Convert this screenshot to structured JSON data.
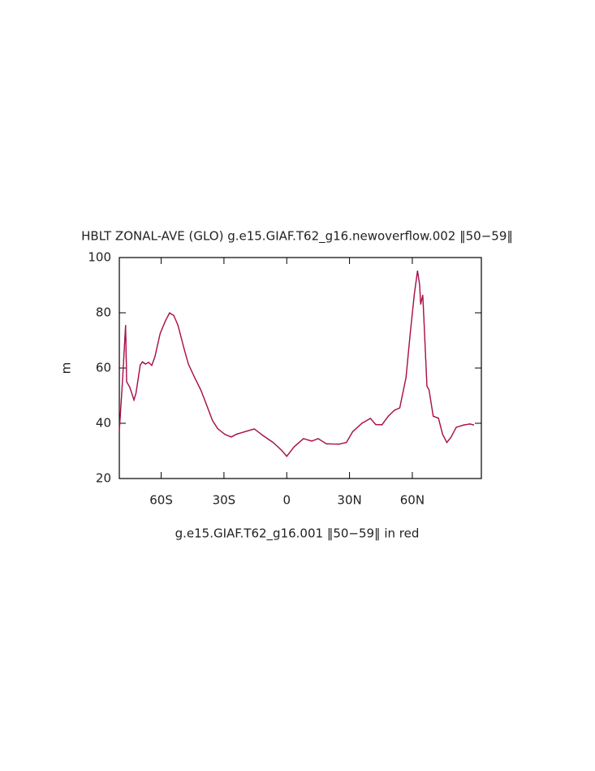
{
  "chart_data": {
    "type": "line",
    "title": "HBLT ZONAL-AVE (GLO) g.e15.GIAF.T62_g16.newoverflow.002 ‖50−59‖",
    "subtitle": "g.e15.GIAF.T62_g16.001 ‖50−59‖ in red",
    "y_label": "m",
    "x": [
      -80,
      -78.5,
      -77,
      -76.5,
      -75,
      -73,
      -72,
      -70,
      -69,
      -67.5,
      -66,
      -64.5,
      -63,
      -60.5,
      -58,
      -56,
      -54,
      -52,
      -49,
      -47,
      -44,
      -41,
      -38,
      -35.5,
      -33,
      -29.5,
      -26.5,
      -24,
      -20,
      -15.5,
      -11.5,
      -6.5,
      -2.5,
      0,
      3.5,
      8,
      12,
      15,
      19,
      25,
      28.5,
      31.5,
      36,
      40,
      42.5,
      45.5,
      48.5,
      51.5,
      54,
      57,
      59,
      61,
      62.5,
      63.5,
      64,
      65,
      65.5,
      67,
      68,
      70,
      72.5,
      74.5,
      76.5,
      78.5,
      81,
      84.5,
      87.5,
      89.5
    ],
    "series": [
      {
        "color": "#2a2a6a",
        "values": [
          37.4,
          55,
          75.6,
          55,
          53,
          48.5,
          51,
          61,
          62.3,
          61.5,
          62,
          61,
          64,
          72.5,
          77,
          80,
          79,
          75.6,
          66.8,
          61.5,
          56.5,
          52,
          46,
          41,
          38,
          36,
          35,
          36,
          37,
          38,
          35.6,
          33,
          30.3,
          28,
          31.5,
          34.5,
          33.5,
          34.5,
          32.5,
          32.5,
          33,
          37,
          40,
          41.8,
          39.5,
          39.5,
          42.6,
          44.7,
          45.6,
          56.5,
          72.5,
          87,
          95.3,
          90,
          83,
          86.5,
          78.5,
          53.5,
          52,
          42.6,
          41.8,
          36,
          33,
          35,
          38.5,
          39.4,
          39.7,
          39.4
        ]
      },
      {
        "color": "#c8003c",
        "values": [
          37.2,
          55.2,
          75.4,
          55.1,
          53.1,
          48.4,
          51.1,
          61.2,
          62.1,
          61.4,
          62.1,
          60.9,
          64.1,
          72.4,
          77.1,
          79.8,
          79.1,
          75.5,
          66.9,
          61.4,
          56.6,
          51.9,
          46.1,
          41.1,
          38.1,
          35.9,
          35.1,
          36.1,
          36.9,
          37.9,
          35.7,
          33.1,
          30.2,
          28.1,
          31.4,
          34.4,
          33.6,
          34.4,
          32.6,
          32.4,
          33.1,
          36.9,
          40.1,
          41.7,
          39.6,
          39.4,
          42.5,
          44.8,
          45.5,
          56.6,
          72.4,
          86.8,
          95.1,
          90.2,
          83.1,
          86.4,
          78.6,
          53.4,
          52.1,
          42.5,
          41.9,
          35.9,
          33.1,
          34.9,
          38.6,
          39.3,
          39.8,
          39.3
        ]
      }
    ],
    "xlim": [
      -80,
      93
    ],
    "xticks": [
      {
        "value": -60,
        "label": "60S"
      },
      {
        "value": -30,
        "label": "30S"
      },
      0,
      {
        "value": 30,
        "label": "30N"
      },
      {
        "value": 60,
        "label": "60N"
      }
    ],
    "ylim": [
      20,
      100
    ],
    "yticks": [
      20,
      40,
      60,
      80,
      100
    ]
  }
}
